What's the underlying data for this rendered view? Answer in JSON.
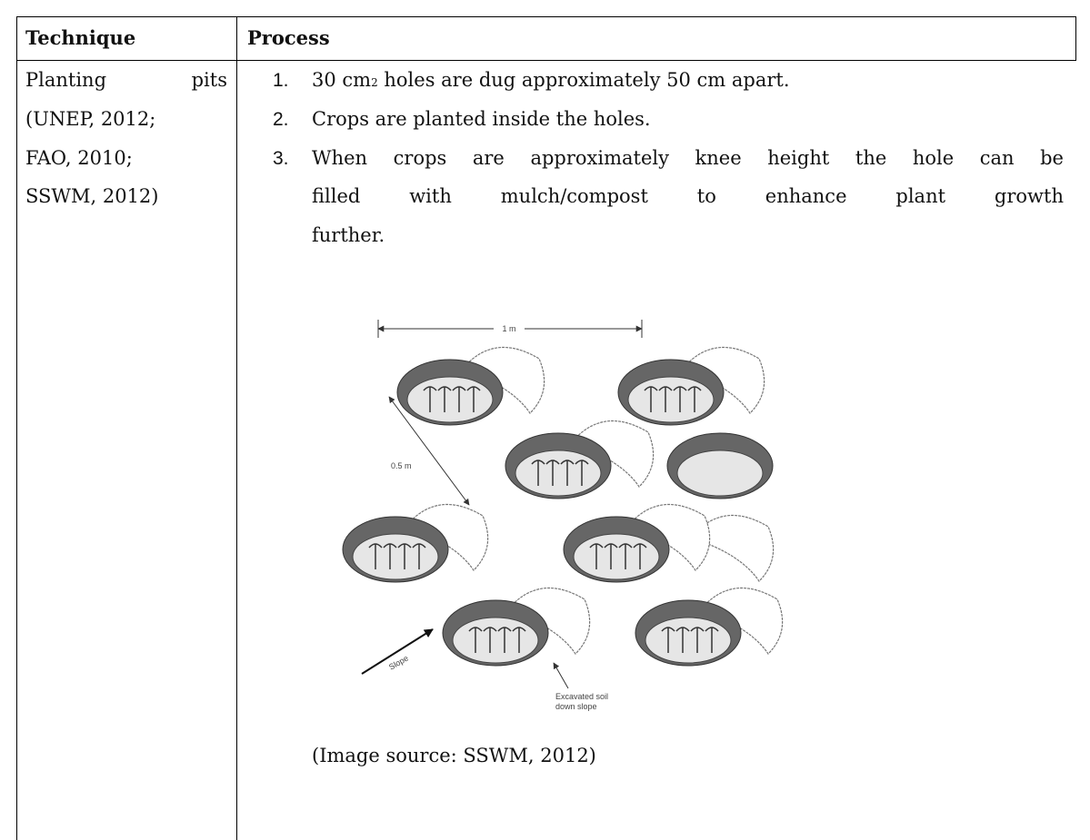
{
  "table": {
    "header": [
      "Technique",
      "Process"
    ],
    "rows": [
      {
        "technique": [
          "Planting pits",
          "(UNEP, 2012;",
          "FAO, 2010;",
          "SSWM, 2012)"
        ],
        "steps": [
          {
            "marker": "1.",
            "parts": [
              "30 cm",
              "2",
              " holes are dug approximately 50 cm apart."
            ]
          },
          {
            "marker": "2.",
            "lines": [
              "Crops are planted inside the holes."
            ]
          },
          {
            "marker": "3.",
            "lines": [
              "When crops are approximately knee height the hole can be",
              "filled with mulch/compost to enhance plant growth",
              "further."
            ]
          }
        ],
        "figure": {
          "labels": [
            "1 m",
            "0.5 m",
            "Slope",
            "Excavated soil",
            "down slope"
          ]
        },
        "caption": "(Image source: SSWM, 2012)"
      }
    ]
  }
}
